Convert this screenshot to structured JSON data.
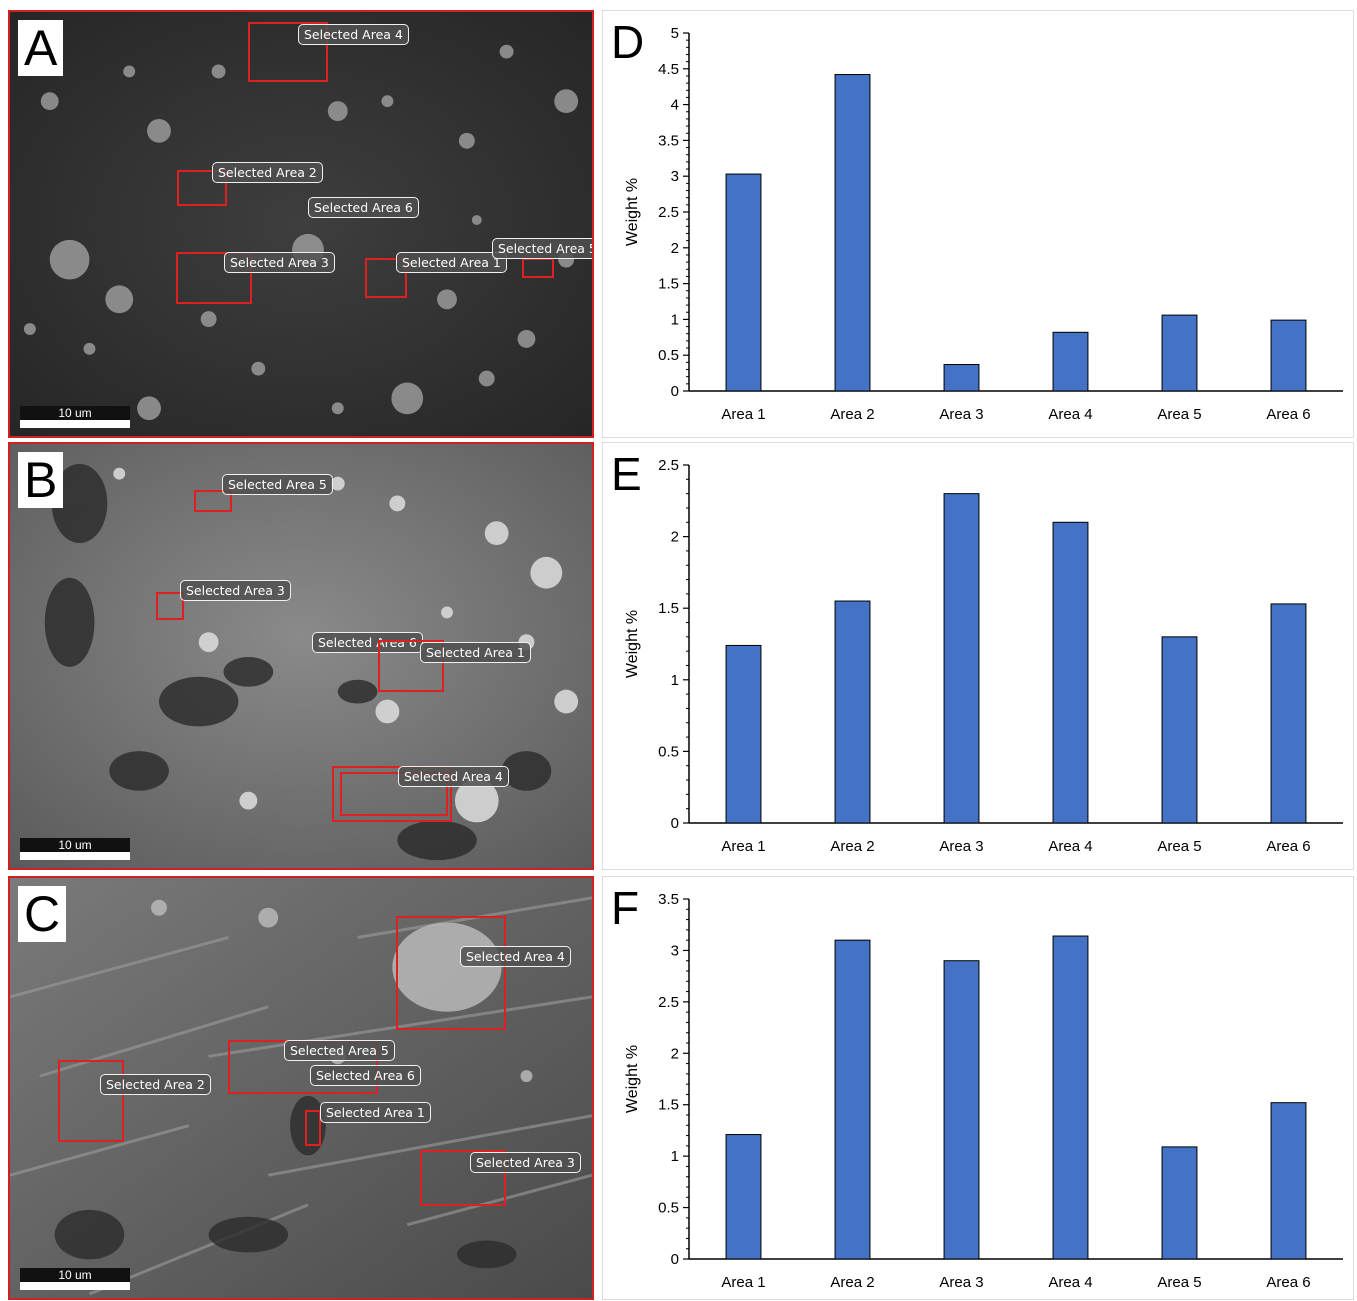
{
  "panels": [
    {
      "letter": "A",
      "scale_label": "10 um",
      "tone": "dark",
      "areas": [
        {
          "label": "Selected Area 4"
        },
        {
          "label": "Selected Area 2"
        },
        {
          "label": "Selected Area 6"
        },
        {
          "label": "Selected Area 3"
        },
        {
          "label": "Selected Area 1"
        },
        {
          "label": "Selected Area 5"
        }
      ]
    },
    {
      "letter": "B",
      "scale_label": "10 um",
      "tone": "light",
      "areas": [
        {
          "label": "Selected Area 5"
        },
        {
          "label": "Selected Area 3"
        },
        {
          "label": "Selected Area 6"
        },
        {
          "label": "Selected Area 1"
        },
        {
          "label": "Selected Area 4"
        }
      ]
    },
    {
      "letter": "C",
      "scale_label": "10 um",
      "tone": "medium",
      "areas": [
        {
          "label": "Selected Area 4"
        },
        {
          "label": "Selected Area 2"
        },
        {
          "label": "Selected Area 5"
        },
        {
          "label": "Selected Area 6"
        },
        {
          "label": "Selected Area 1"
        },
        {
          "label": "Selected Area 3"
        }
      ]
    }
  ],
  "chart_data": [
    {
      "panel": "D",
      "type": "bar",
      "categories": [
        "Area 1",
        "Area 2",
        "Area 3",
        "Area 4",
        "Area 5",
        "Area 6"
      ],
      "values": [
        3.03,
        4.42,
        0.37,
        0.82,
        1.06,
        0.99
      ],
      "ylabel": "Weight %",
      "ylim": [
        0,
        5
      ],
      "yticks": [
        0,
        0.5,
        1,
        1.5,
        2,
        2.5,
        3,
        3.5,
        4,
        4.5,
        5
      ],
      "ytick_labels": [
        "0",
        "0.5",
        "1",
        "1.5",
        "2",
        "2.5",
        "3",
        "3.5",
        "4",
        "4.5",
        "5"
      ],
      "bar_color": "#4472c4",
      "grid": false
    },
    {
      "panel": "E",
      "type": "bar",
      "categories": [
        "Area 1",
        "Area 2",
        "Area 3",
        "Area 4",
        "Area 5",
        "Area 6"
      ],
      "values": [
        1.24,
        1.55,
        2.3,
        2.1,
        1.3,
        1.53
      ],
      "ylabel": "Weight %",
      "ylim": [
        0,
        2.5
      ],
      "yticks": [
        0,
        0.5,
        1,
        1.5,
        2,
        2.5
      ],
      "ytick_labels": [
        "0",
        "0.5",
        "1",
        "1.5",
        "2",
        "2.5"
      ],
      "bar_color": "#4472c4",
      "grid": false
    },
    {
      "panel": "F",
      "type": "bar",
      "categories": [
        "Area 1",
        "Area 2",
        "Area 3",
        "Area 4",
        "Area 5",
        "Area 6"
      ],
      "values": [
        1.21,
        3.1,
        2.9,
        3.14,
        1.09,
        1.52
      ],
      "ylabel": "Weight %",
      "ylim": [
        0,
        3.5
      ],
      "yticks": [
        0,
        0.5,
        1,
        1.5,
        2,
        2.5,
        3,
        3.5
      ],
      "ytick_labels": [
        "0",
        "0.5",
        "1",
        "1.5",
        "2",
        "2.5",
        "3",
        "3.5"
      ],
      "bar_color": "#4472c4",
      "grid": false
    }
  ]
}
